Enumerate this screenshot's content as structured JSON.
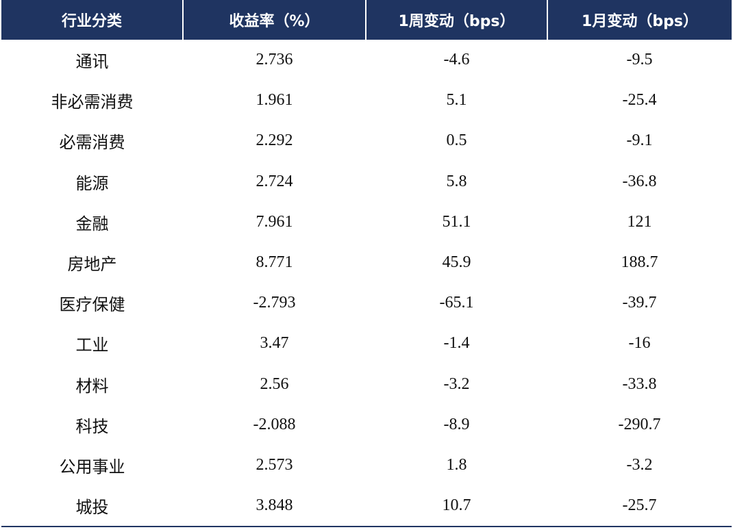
{
  "colors": {
    "header_bg": "#1f3461",
    "header_text": "#ffffff",
    "body_text": "#111111"
  },
  "table": {
    "headers": [
      "行业分类",
      "收益率（%）",
      "1周变动（bps）",
      "1月变动（bps）"
    ],
    "rows": [
      [
        "通讯",
        "2.736",
        "-4.6",
        "-9.5"
      ],
      [
        "非必需消费",
        "1.961",
        "5.1",
        "-25.4"
      ],
      [
        "必需消费",
        "2.292",
        "0.5",
        "-9.1"
      ],
      [
        "能源",
        "2.724",
        "5.8",
        "-36.8"
      ],
      [
        "金融",
        "7.961",
        "51.1",
        "121"
      ],
      [
        "房地产",
        "8.771",
        "45.9",
        "188.7"
      ],
      [
        "医疗保健",
        "-2.793",
        "-65.1",
        "-39.7"
      ],
      [
        "工业",
        "3.47",
        "-1.4",
        "-16"
      ],
      [
        "材料",
        "2.56",
        "-3.2",
        "-33.8"
      ],
      [
        "科技",
        "-2.088",
        "-8.9",
        "-290.7"
      ],
      [
        "公用事业",
        "2.573",
        "1.8",
        "-3.2"
      ],
      [
        "城投",
        "3.848",
        "10.7",
        "-25.7"
      ]
    ]
  }
}
